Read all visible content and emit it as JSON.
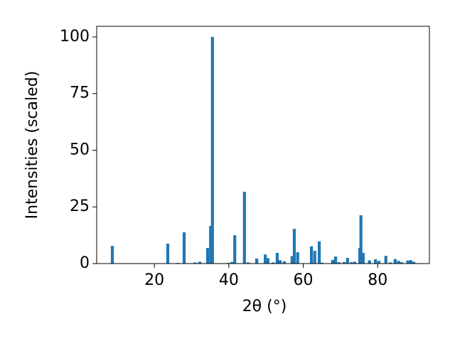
{
  "chart_data": {
    "type": "bar",
    "x_label": "2θ (°)",
    "y_label": "Intensities (scaled)",
    "x": [
      8.7,
      23.6,
      26.3,
      28.0,
      30.9,
      32.2,
      34.3,
      35.1,
      35.6,
      39.8,
      40.8,
      41.6,
      44.2,
      45.2,
      47.5,
      49.8,
      50.5,
      51.9,
      53.0,
      53.8,
      54.9,
      57.0,
      57.6,
      58.5,
      62.2,
      63.1,
      64.3,
      65.0,
      67.9,
      68.7,
      69.6,
      71.0,
      71.9,
      72.9,
      73.8,
      75.2,
      75.5,
      76.1,
      77.8,
      79.4,
      80.3,
      82.2,
      83.4,
      84.7,
      85.6,
      86.4,
      88.1,
      88.9,
      89.7
    ],
    "values": [
      7.8,
      8.8,
      0.3,
      13.8,
      0.5,
      0.8,
      6.9,
      16.6,
      100,
      0.3,
      0.7,
      12.5,
      31.7,
      0.5,
      2.2,
      4.0,
      2.4,
      0.5,
      4.7,
      1.5,
      1.0,
      3.3,
      15.3,
      5.0,
      7.6,
      5.6,
      9.8,
      0.4,
      1.6,
      3.1,
      0.6,
      0.7,
      2.5,
      0.6,
      0.8,
      6.9,
      21.3,
      4.7,
      1.4,
      1.9,
      1.2,
      3.4,
      0.5,
      2.0,
      1.2,
      0.6,
      1.4,
      1.5,
      0.8
    ],
    "color": "#1f77b4",
    "xlim": [
      4.5,
      93.9
    ],
    "xticks": [
      20,
      40,
      60,
      80
    ],
    "ylim": [
      0,
      104.7
    ],
    "yticks": [
      0,
      25,
      50,
      75,
      100
    ]
  }
}
